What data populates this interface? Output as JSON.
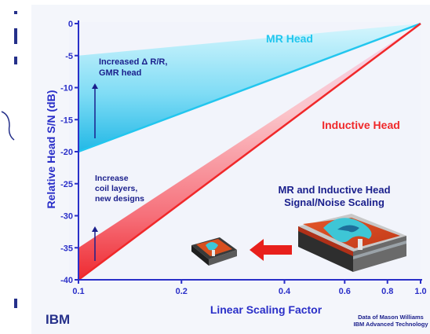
{
  "colors": {
    "frame_bg": "#f4f6fb",
    "plot_bg": "#f2f4fb",
    "axis_blue": "#2a2fc8",
    "mr_cyan": "#22c6ee",
    "mr_band_light": "#bff0fb",
    "ind_red": "#f0282a",
    "ind_band_light": "#fbc0c6",
    "ind_band_pale": "#f7ddf0",
    "annot_navy": "#1a1f8c",
    "margin_navy": "#25308a",
    "arrow_red": "#e8201c"
  },
  "chart_data": {
    "type": "line",
    "xscale": "log",
    "xlabel": "Linear Scaling Factor",
    "ylabel": "Relative Head S/N (dB)",
    "xlim": [
      0.1,
      1.0
    ],
    "ylim": [
      -40,
      0
    ],
    "x_ticks": [
      0.1,
      0.2,
      0.4,
      0.6,
      0.8,
      1.0
    ],
    "x_tick_labels": [
      "0.1",
      "0.2",
      "0.4",
      "0.6",
      "0.8",
      "1.0"
    ],
    "y_ticks": [
      0,
      -5,
      -10,
      -15,
      -20,
      -25,
      -30,
      -35,
      -40
    ],
    "y_tick_labels": [
      "0",
      "-5",
      "-10",
      "-15",
      "-20",
      "-25",
      "-30",
      "-35",
      "-40"
    ],
    "series": [
      {
        "name": "MR Head",
        "x": [
          0.1,
          1.0
        ],
        "y_band_top": [
          -5,
          0
        ],
        "y_band_bottom": [
          -20,
          0
        ],
        "color": "#22c6ee"
      },
      {
        "name": "Inductive Head",
        "x": [
          0.1,
          1.0
        ],
        "y_band_top": [
          -35,
          0
        ],
        "y_band_bottom": [
          -40,
          0
        ],
        "color": "#f0282a"
      }
    ],
    "series_labels": {
      "mr": "MR Head",
      "inductive": "Inductive Head"
    },
    "annotations": {
      "mr_arrow": [
        "Increased  Δ R/R,",
        "GMR head"
      ],
      "ind_arrow": [
        "Increase",
        "coil layers,",
        "new designs"
      ],
      "inset_title": [
        "MR and Inductive Head",
        "Signal/Noise Scaling"
      ]
    },
    "grid": false
  },
  "page": {
    "logo": "IBM",
    "credit": [
      "Data of Mason Williams",
      "IBM Advanced Technology"
    ]
  }
}
